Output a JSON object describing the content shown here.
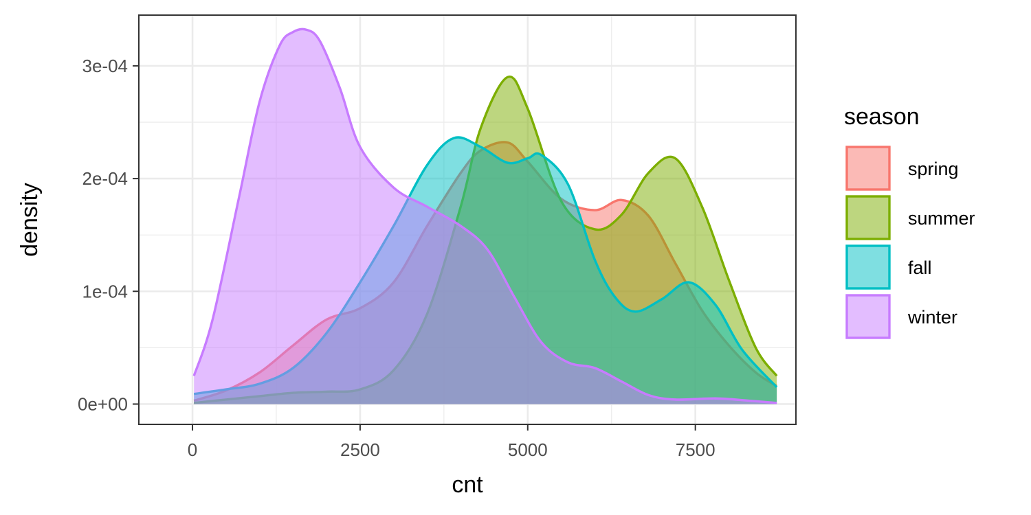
{
  "chart_data": {
    "type": "area",
    "xlabel": "cnt",
    "ylabel": "density",
    "xlim": [
      -800,
      9000
    ],
    "ylim": [
      -1.8e-05,
      0.000345
    ],
    "x_ticks": [
      {
        "value": 0,
        "label": "0"
      },
      {
        "value": 2500,
        "label": "2500"
      },
      {
        "value": 5000,
        "label": "5000"
      },
      {
        "value": 7500,
        "label": "7500"
      }
    ],
    "y_ticks": [
      {
        "value": 0,
        "label": "0e+00"
      },
      {
        "value": 0.0001,
        "label": "1e-04"
      },
      {
        "value": 0.0002,
        "label": "2e-04"
      },
      {
        "value": 0.0003,
        "label": "3e-04"
      }
    ],
    "grid": true,
    "legend": {
      "title": "season",
      "position": "right"
    },
    "fill_opacity": 0.5,
    "series": [
      {
        "name": "spring",
        "color": "#F8766D",
        "x": [
          22,
          500,
          1000,
          1500,
          2000,
          2500,
          3000,
          3500,
          4000,
          4300,
          4700,
          5000,
          5500,
          6000,
          6400,
          6800,
          7200,
          7600,
          8000,
          8400,
          8714
        ],
        "y": [
          3e-06,
          1.2e-05,
          2.8e-05,
          5.2e-05,
          7.5e-05,
          8.5e-05,
          0.000108,
          0.000158,
          0.000205,
          0.000225,
          0.000232,
          0.000215,
          0.000182,
          0.000172,
          0.000181,
          0.000167,
          0.000125,
          8.3e-05,
          5.2e-05,
          2.8e-05,
          1.6e-05
        ]
      },
      {
        "name": "summer",
        "color": "#7CAE00",
        "x": [
          22,
          500,
          1000,
          1500,
          2000,
          2500,
          3000,
          3500,
          4000,
          4300,
          4700,
          5000,
          5500,
          6000,
          6400,
          6800,
          7200,
          7600,
          8000,
          8400,
          8714
        ],
        "y": [
          1e-06,
          4e-06,
          7e-06,
          1e-05,
          1.1e-05,
          1.3e-05,
          3e-05,
          8e-05,
          0.000175,
          0.000245,
          0.00029,
          0.000262,
          0.00018,
          0.000155,
          0.000168,
          0.000205,
          0.000218,
          0.000175,
          0.00011,
          5e-05,
          2.5e-05
        ]
      },
      {
        "name": "fall",
        "color": "#00BFC4",
        "x": [
          22,
          500,
          1000,
          1500,
          2000,
          2500,
          3000,
          3500,
          3900,
          4300,
          4700,
          5000,
          5200,
          5600,
          6000,
          6300,
          6600,
          7000,
          7400,
          7800,
          8200,
          8714
        ],
        "y": [
          9e-06,
          1.3e-05,
          1.8e-05,
          3.2e-05,
          6.3e-05,
          0.000108,
          0.000158,
          0.000212,
          0.000236,
          0.000228,
          0.000214,
          0.000218,
          0.000221,
          0.000195,
          0.000128,
          9.5e-05,
          8.2e-05,
          9.3e-05,
          0.000108,
          8.8e-05,
          4.8e-05,
          1.5e-05
        ]
      },
      {
        "name": "winter",
        "color": "#C77CFF",
        "x": [
          22,
          300,
          700,
          1000,
          1300,
          1500,
          1700,
          1900,
          2200,
          2500,
          3000,
          3500,
          4000,
          4400,
          4800,
          5200,
          5600,
          6000,
          6400,
          6800,
          7200,
          7800,
          8300,
          8714
        ],
        "y": [
          2.5e-05,
          7.5e-05,
          0.000185,
          0.000268,
          0.000318,
          0.00033,
          0.000332,
          0.000322,
          0.00028,
          0.000228,
          0.000192,
          0.000175,
          0.000158,
          0.000137,
          9.5e-05,
          5.5e-05,
          3.7e-05,
          3.2e-05,
          2e-05,
          8e-06,
          4e-06,
          5e-06,
          3e-06,
          1e-06
        ]
      }
    ]
  }
}
